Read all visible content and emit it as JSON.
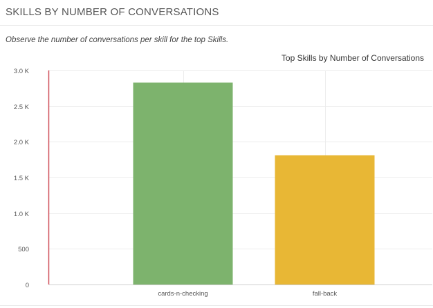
{
  "panel": {
    "title": "SKILLS BY NUMBER OF CONVERSATIONS",
    "subtitle": "Observe the number of conversations per skill for the top Skills."
  },
  "chart_data": {
    "type": "bar",
    "title": "Top Skills by Number of Conversations",
    "categories": [
      "cards-n-checking",
      "fall-back"
    ],
    "values": [
      2830,
      1810
    ],
    "colors": [
      "#7db36d",
      "#e8b735"
    ],
    "ylim": [
      0,
      3000
    ],
    "yticks": [
      0,
      500,
      1000,
      1500,
      2000,
      2500,
      3000
    ],
    "ytick_labels": [
      "0",
      "500",
      "1.0 K",
      "1.5 K",
      "2.0 K",
      "2.5 K",
      "3.0 K"
    ],
    "axis_color": "#d0505a",
    "grid": true,
    "xlabel": "",
    "ylabel": ""
  }
}
